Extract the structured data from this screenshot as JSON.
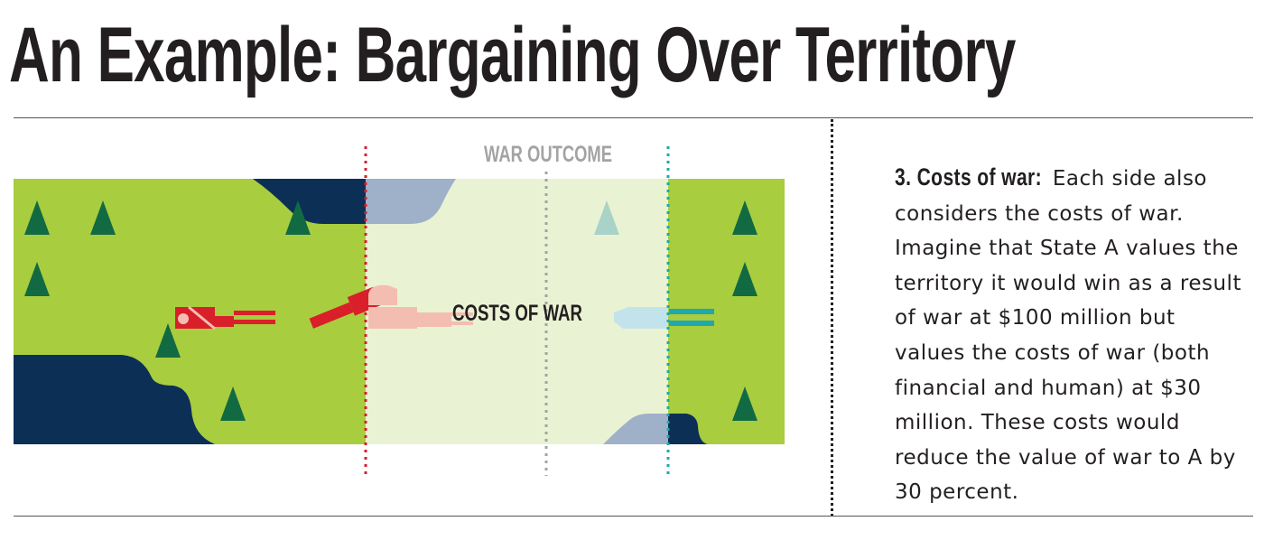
{
  "title": "An Example: Bargaining Over Territory",
  "diagram": {
    "war_outcome_label": "WAR OUTCOME",
    "costs_of_war_label": "COSTS OF WAR"
  },
  "side_panel": {
    "heading": "3. Costs of war:",
    "body": "Each side also considers the costs of war. Imagine that State A values the territory it would win as a result of war at $100 million but values the costs of war (both financial and human) at $30 million. These costs would reduce the value of war to A by 30 percent."
  },
  "colors": {
    "land": "#a8cd3e",
    "zone": "#e9f3d3",
    "water": "#0c2f56",
    "water_faded": "#9fb1c9",
    "tree": "#126a43",
    "tree_faded": "#a9d3c8",
    "state_a": "#d91f2a",
    "state_a_faded": "#f4bdb1",
    "state_b": "#1fa8ad",
    "state_b_faded": "#c3e3ec",
    "war_outcome_line": "#a3a3a3"
  },
  "icons": [
    "tree-icon",
    "tank-icon"
  ]
}
